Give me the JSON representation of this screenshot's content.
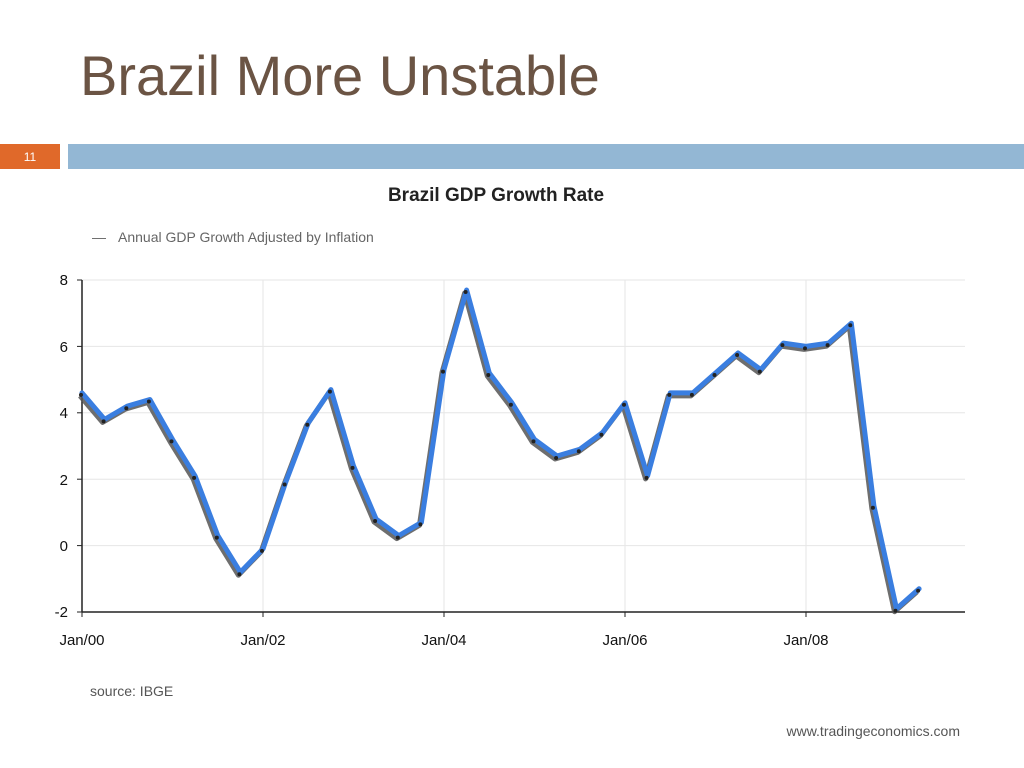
{
  "slide": {
    "title": "Brazil More Unstable",
    "number": "11",
    "accent_color": "#e0692a",
    "bar_color": "#93b7d4",
    "title_color": "#6b5444"
  },
  "chart_data": {
    "type": "line",
    "title": "Brazil GDP Growth Rate",
    "legend": "Annual GDP Growth Adjusted by Inflation",
    "legend_prefix": "—",
    "source": "source: IBGE",
    "credit": "www.tradingeconomics.com",
    "x_tick_labels": [
      "Jan/00",
      "Jan/02",
      "Jan/04",
      "Jan/06",
      "Jan/08"
    ],
    "y_tick_labels": [
      "8",
      "6",
      "4",
      "2",
      "0",
      "-2"
    ],
    "ylim": [
      -2,
      8
    ],
    "y_ticks": [
      8,
      6,
      4,
      2,
      0,
      -2
    ],
    "grid": true,
    "line_color": "#3a7ee0",
    "shadow_color": "#555555",
    "series": [
      {
        "x": [
          "2000-Q1",
          "2000-Q2",
          "2000-Q3",
          "2000-Q4",
          "2001-Q1",
          "2001-Q2",
          "2001-Q3",
          "2001-Q4",
          "2002-Q1",
          "2002-Q2",
          "2002-Q3",
          "2002-Q4",
          "2003-Q1",
          "2003-Q2",
          "2003-Q3",
          "2003-Q4",
          "2004-Q1",
          "2004-Q2",
          "2004-Q3",
          "2004-Q4",
          "2005-Q1",
          "2005-Q2",
          "2005-Q3",
          "2005-Q4",
          "2006-Q1",
          "2006-Q2",
          "2006-Q3",
          "2006-Q4",
          "2007-Q1",
          "2007-Q2",
          "2007-Q3",
          "2007-Q4",
          "2008-Q1",
          "2008-Q2",
          "2008-Q3",
          "2008-Q4",
          "2009-Q1",
          "2009-Q2"
        ],
        "values": [
          4.6,
          3.8,
          4.2,
          4.4,
          3.2,
          2.1,
          0.3,
          -0.8,
          -0.1,
          1.9,
          3.7,
          4.7,
          2.4,
          0.8,
          0.3,
          0.7,
          5.3,
          7.7,
          5.2,
          4.3,
          3.2,
          2.7,
          2.9,
          3.4,
          4.3,
          2.1,
          4.6,
          4.6,
          5.2,
          5.8,
          5.3,
          6.1,
          6.0,
          6.1,
          6.7,
          1.2,
          -1.9,
          -1.3
        ]
      }
    ]
  }
}
